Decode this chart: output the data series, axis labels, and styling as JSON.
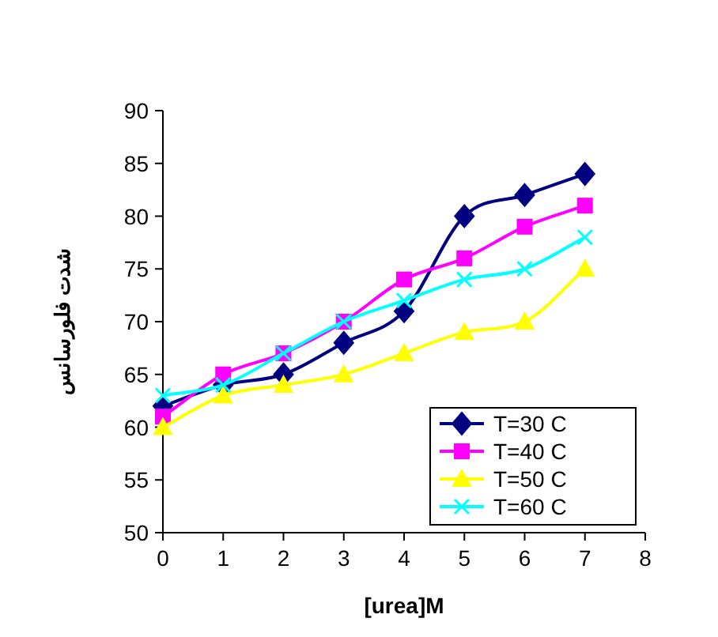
{
  "chart_data": {
    "type": "line",
    "xlabel": "[urea]M",
    "ylabel": "شدت فلورسانس",
    "x": [
      0,
      1,
      2,
      3,
      4,
      5,
      6,
      7
    ],
    "series": [
      {
        "name": "T=30 C",
        "color": "#000080",
        "marker": "diamond",
        "values": [
          62,
          64,
          65,
          68,
          71,
          80,
          82,
          84
        ]
      },
      {
        "name": "T=40 C",
        "color": "#ff00ff",
        "marker": "square",
        "values": [
          61,
          65,
          67,
          70,
          74,
          76,
          79,
          81
        ]
      },
      {
        "name": "T=50 C",
        "color": "#ffff00",
        "marker": "triangle",
        "values": [
          60,
          63,
          64,
          65,
          67,
          69,
          70,
          75
        ]
      },
      {
        "name": "T=60 C",
        "color": "#00ffff",
        "marker": "cross",
        "values": [
          63,
          64,
          67,
          70,
          72,
          74,
          75,
          78
        ]
      }
    ],
    "xlim": [
      0,
      8
    ],
    "xticks": [
      0,
      1,
      2,
      3,
      4,
      5,
      6,
      7,
      8
    ],
    "ylim": [
      50,
      90
    ],
    "yticks": [
      50,
      55,
      60,
      65,
      70,
      75,
      80,
      85,
      90
    ],
    "grid": false,
    "legend": "bottom right",
    "line_style": "solid"
  }
}
